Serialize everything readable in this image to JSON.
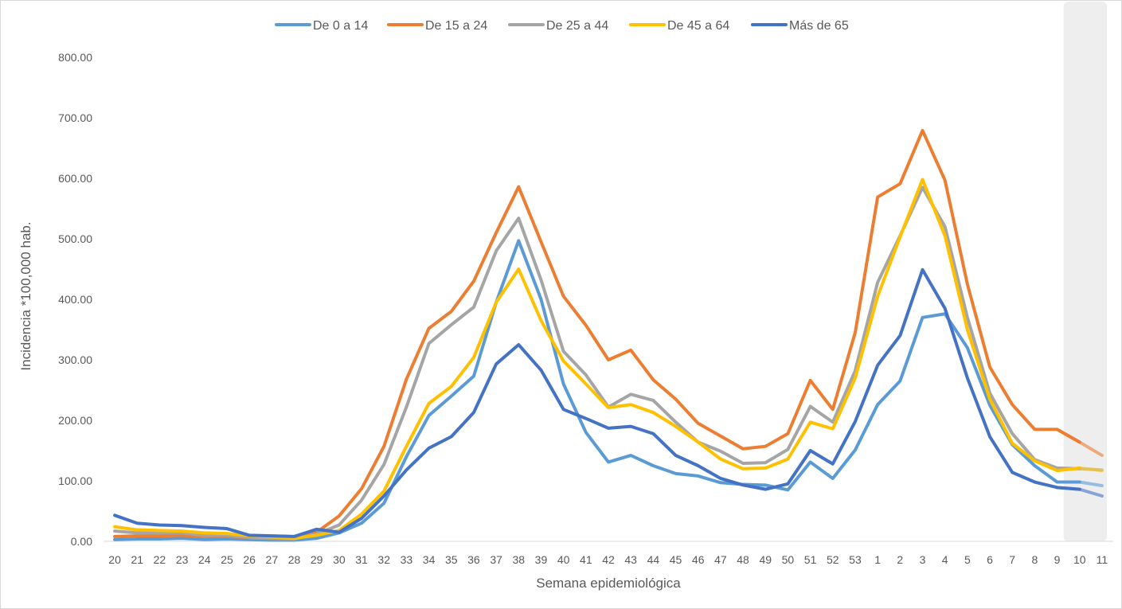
{
  "chart_data": {
    "type": "line",
    "title": "",
    "xlabel": "Semana epidemiológica",
    "ylabel": "Incidencia *100,000 hab.",
    "ylim": [
      0,
      800
    ],
    "yticks": [
      "0.00",
      "100.00",
      "200.00",
      "300.00",
      "400.00",
      "500.00",
      "600.00",
      "700.00",
      "800.00"
    ],
    "categories": [
      "20",
      "21",
      "22",
      "23",
      "24",
      "25",
      "26",
      "27",
      "28",
      "29",
      "30",
      "31",
      "32",
      "33",
      "34",
      "35",
      "36",
      "37",
      "38",
      "39",
      "40",
      "41",
      "42",
      "43",
      "44",
      "45",
      "46",
      "47",
      "48",
      "49",
      "50",
      "51",
      "52",
      "53",
      "1",
      "2",
      "3",
      "4",
      "5",
      "6",
      "7",
      "8",
      "9",
      "10",
      "11"
    ],
    "grid": false,
    "legend_position": "top",
    "highlight_last_categories": 2,
    "series": [
      {
        "name": "De 0 a 14",
        "color": "#5B9BD5",
        "values": [
          3,
          4,
          4,
          5,
          3,
          4,
          3,
          2,
          2,
          5,
          14,
          30,
          63,
          140,
          208,
          240,
          273,
          395,
          497,
          400,
          260,
          180,
          131,
          142,
          125,
          112,
          108,
          97,
          94,
          93,
          85,
          131,
          104,
          151,
          226,
          265,
          370,
          376,
          320,
          225,
          160,
          125,
          98,
          98,
          92
        ]
      },
      {
        "name": "De 15 a 24",
        "color": "#ED7D31",
        "values": [
          8,
          9,
          9,
          10,
          8,
          8,
          6,
          5,
          5,
          15,
          42,
          87,
          157,
          268,
          352,
          380,
          430,
          510,
          586,
          495,
          405,
          357,
          300,
          316,
          267,
          235,
          195,
          174,
          153,
          157,
          178,
          266,
          218,
          345,
          569,
          591,
          679,
          597,
          425,
          288,
          226,
          185,
          185,
          164,
          142
        ]
      },
      {
        "name": "De 25 a 44",
        "color": "#A5A5A5",
        "values": [
          17,
          14,
          14,
          14,
          10,
          10,
          6,
          5,
          4,
          12,
          27,
          68,
          127,
          222,
          327,
          358,
          387,
          480,
          534,
          432,
          314,
          275,
          222,
          243,
          233,
          197,
          164,
          149,
          129,
          130,
          152,
          223,
          197,
          282,
          428,
          505,
          585,
          520,
          370,
          245,
          178,
          135,
          121,
          120,
          118
        ]
      },
      {
        "name": "De 45 a 64",
        "color": "#FFC000",
        "values": [
          24,
          19,
          18,
          17,
          14,
          13,
          9,
          7,
          5,
          10,
          18,
          45,
          83,
          157,
          228,
          256,
          304,
          395,
          450,
          365,
          298,
          260,
          221,
          226,
          213,
          190,
          164,
          136,
          120,
          121,
          136,
          197,
          186,
          270,
          405,
          503,
          598,
          505,
          350,
          235,
          162,
          133,
          117,
          121,
          117
        ]
      },
      {
        "name": "Más de 65",
        "color": "#4472C4",
        "values": [
          43,
          30,
          27,
          26,
          23,
          21,
          10,
          9,
          8,
          20,
          15,
          38,
          75,
          118,
          154,
          173,
          213,
          293,
          325,
          283,
          218,
          203,
          187,
          190,
          178,
          142,
          125,
          104,
          93,
          86,
          95,
          150,
          128,
          198,
          291,
          340,
          449,
          385,
          270,
          173,
          114,
          98,
          89,
          86,
          75
        ]
      }
    ]
  }
}
